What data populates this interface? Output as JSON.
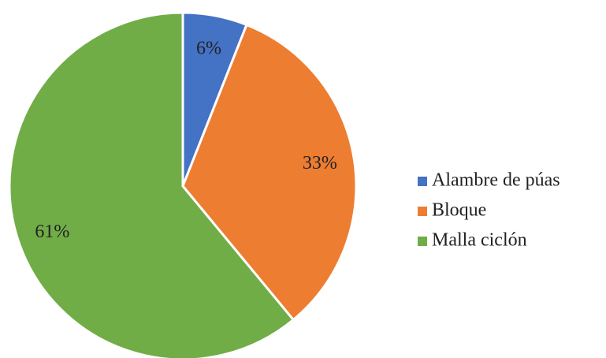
{
  "chart_data": {
    "type": "pie",
    "categories": [
      "Alambre de púas",
      "Bloque",
      "Malla ciclón"
    ],
    "values": [
      6,
      33,
      61
    ],
    "value_labels": [
      "6%",
      "33%",
      "61%"
    ],
    "colors": [
      "#4472c4",
      "#ed7d31",
      "#70ad47"
    ],
    "legend": "right"
  }
}
